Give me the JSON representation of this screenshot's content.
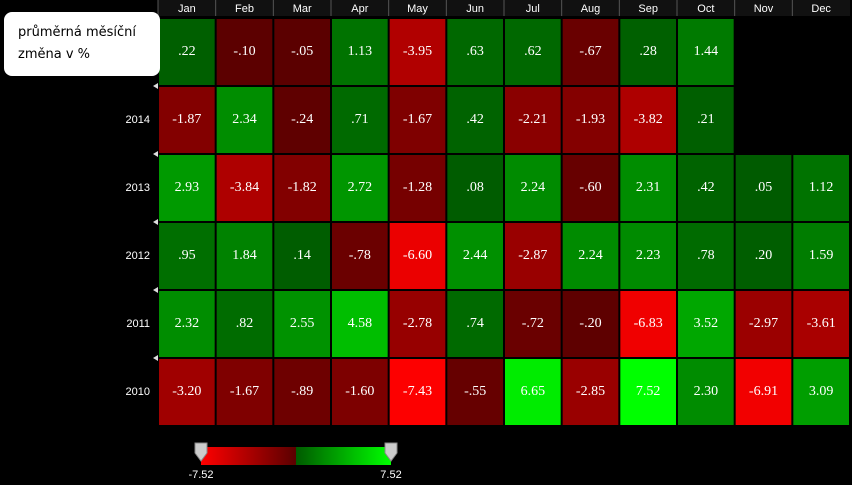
{
  "chart_data": {
    "type": "heatmap",
    "annotation": "průměrná měsíční změna v %",
    "x_categories": [
      "Jan",
      "Feb",
      "Mar",
      "Apr",
      "May",
      "Jun",
      "Jul",
      "Aug",
      "Sep",
      "Oct",
      "Nov",
      "Dec"
    ],
    "y_categories": [
      null,
      "2014",
      "2013",
      "2012",
      "2011",
      "2010"
    ],
    "values": [
      [
        0.22,
        -0.1,
        -0.05,
        1.13,
        -3.95,
        0.63,
        0.62,
        -0.67,
        0.28,
        1.44,
        null,
        null
      ],
      [
        -1.87,
        2.34,
        -0.24,
        0.71,
        -1.67,
        0.42,
        -2.21,
        -1.93,
        -3.82,
        0.21,
        null,
        null
      ],
      [
        2.93,
        -3.84,
        -1.82,
        2.72,
        -1.28,
        0.08,
        2.24,
        -0.6,
        2.31,
        0.42,
        0.05,
        1.12
      ],
      [
        0.95,
        1.84,
        0.14,
        -0.78,
        -6.6,
        2.44,
        -2.87,
        2.24,
        2.23,
        0.78,
        0.2,
        1.59
      ],
      [
        2.32,
        0.82,
        2.55,
        4.58,
        -2.78,
        0.74,
        -0.72,
        -0.2,
        -6.83,
        3.52,
        -2.97,
        -3.61
      ],
      [
        -3.2,
        -1.67,
        -0.89,
        -1.6,
        -7.43,
        -0.55,
        6.65,
        -2.85,
        7.52,
        2.3,
        -6.91,
        3.09
      ]
    ],
    "value_labels": [
      [
        ".22",
        "-.10",
        "-.05",
        "1.13",
        "-3.95",
        ".63",
        ".62",
        "-.67",
        ".28",
        "1.44",
        null,
        null
      ],
      [
        "-1.87",
        "2.34",
        "-.24",
        ".71",
        "-1.67",
        ".42",
        "-2.21",
        "-1.93",
        "-3.82",
        ".21",
        null,
        null
      ],
      [
        "2.93",
        "-3.84",
        "-1.82",
        "2.72",
        "-1.28",
        ".08",
        "2.24",
        "-.60",
        "2.31",
        ".42",
        ".05",
        "1.12"
      ],
      [
        ".95",
        "1.84",
        ".14",
        "-.78",
        "-6.60",
        "2.44",
        "-2.87",
        "2.24",
        "2.23",
        ".78",
        ".20",
        "1.59"
      ],
      [
        "2.32",
        ".82",
        "2.55",
        "4.58",
        "-2.78",
        ".74",
        "-.72",
        "-.20",
        "-6.83",
        "3.52",
        "-2.97",
        "-3.61"
      ],
      [
        "-3.20",
        "-1.67",
        "-.89",
        "-1.60",
        "-7.43",
        "-.55",
        "6.65",
        "-2.85",
        "7.52",
        "2.30",
        "-6.91",
        "3.09"
      ]
    ],
    "zlim": [
      -7.52,
      7.52
    ],
    "zticks": [
      -7.52,
      7.52
    ],
    "colorscale": [
      "#ff0000",
      "#5a0000",
      "#005a00",
      "#00ff00"
    ]
  }
}
